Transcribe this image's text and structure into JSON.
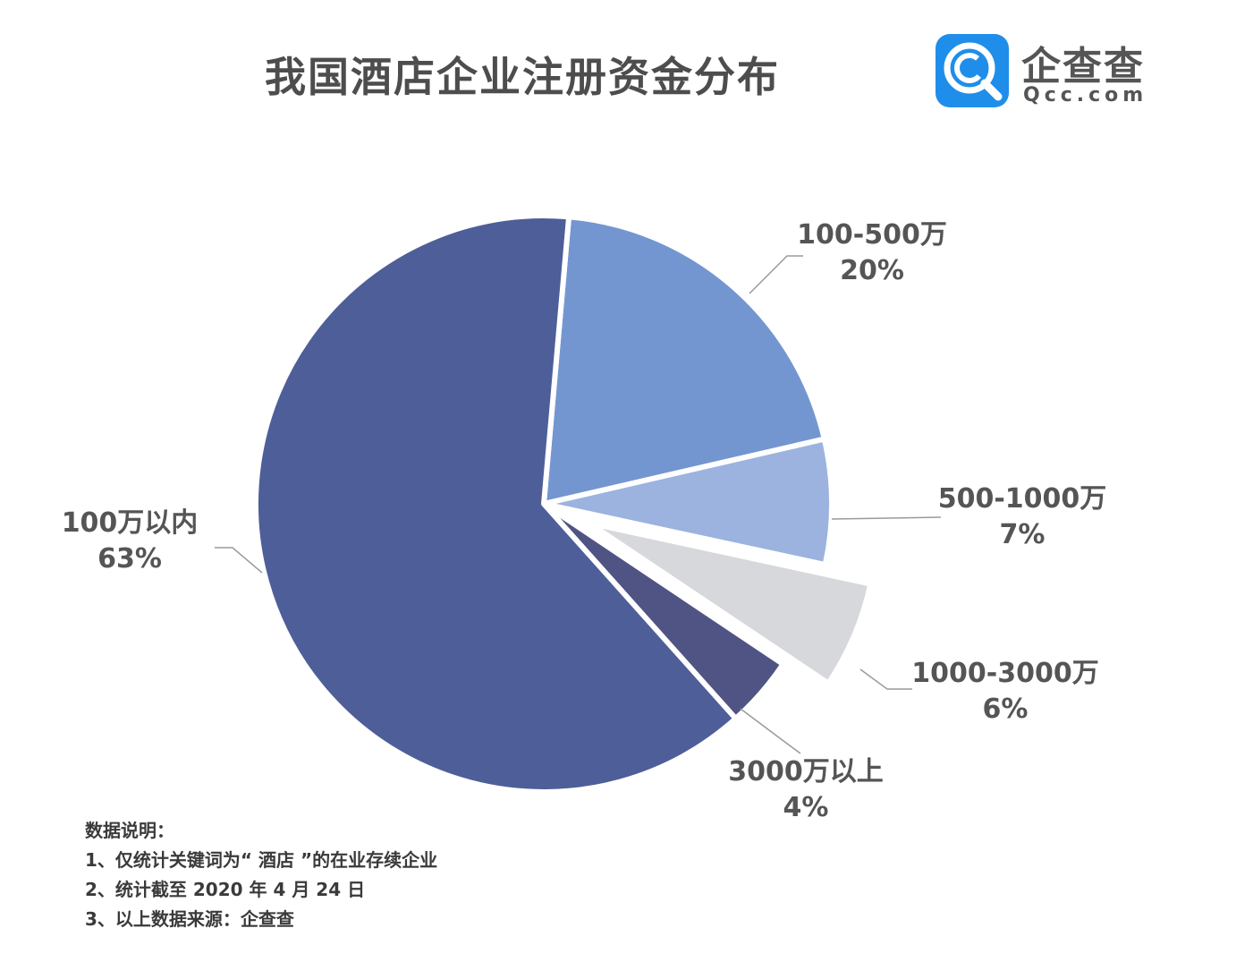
{
  "title": "我国酒店企业注册资金分布",
  "logo": {
    "icon": "qcc-magnifier-icon",
    "brand_color": "#1f8eea",
    "name": "企查查",
    "domain": "Qcc.com"
  },
  "chart_data": {
    "type": "pie",
    "title": "我国酒店企业注册资金分布",
    "slices": [
      {
        "label": "100-500万",
        "value_label": "20%",
        "value": 20,
        "color": "#7496d0",
        "exploded": false
      },
      {
        "label": "500-1000万",
        "value_label": "7%",
        "value": 7,
        "color": "#9bb3de",
        "exploded": false
      },
      {
        "label": "1000-3000万",
        "value_label": "6%",
        "value": 6,
        "color": "#d7d8dc",
        "exploded": true
      },
      {
        "label": "3000万以上",
        "value_label": "4%",
        "value": 4,
        "color": "#4f5484",
        "exploded": false
      },
      {
        "label": "100万以内",
        "value_label": "63%",
        "value": 63,
        "color": "#4e5e99",
        "exploded": false
      }
    ]
  },
  "notes": {
    "heading": "数据说明：",
    "items": [
      "1、仅统计关键词为“ 酒店 ”的在业存续企业",
      "2、统计截至 2020 年 4 月 24 日",
      "3、以上数据来源：企查查"
    ]
  }
}
